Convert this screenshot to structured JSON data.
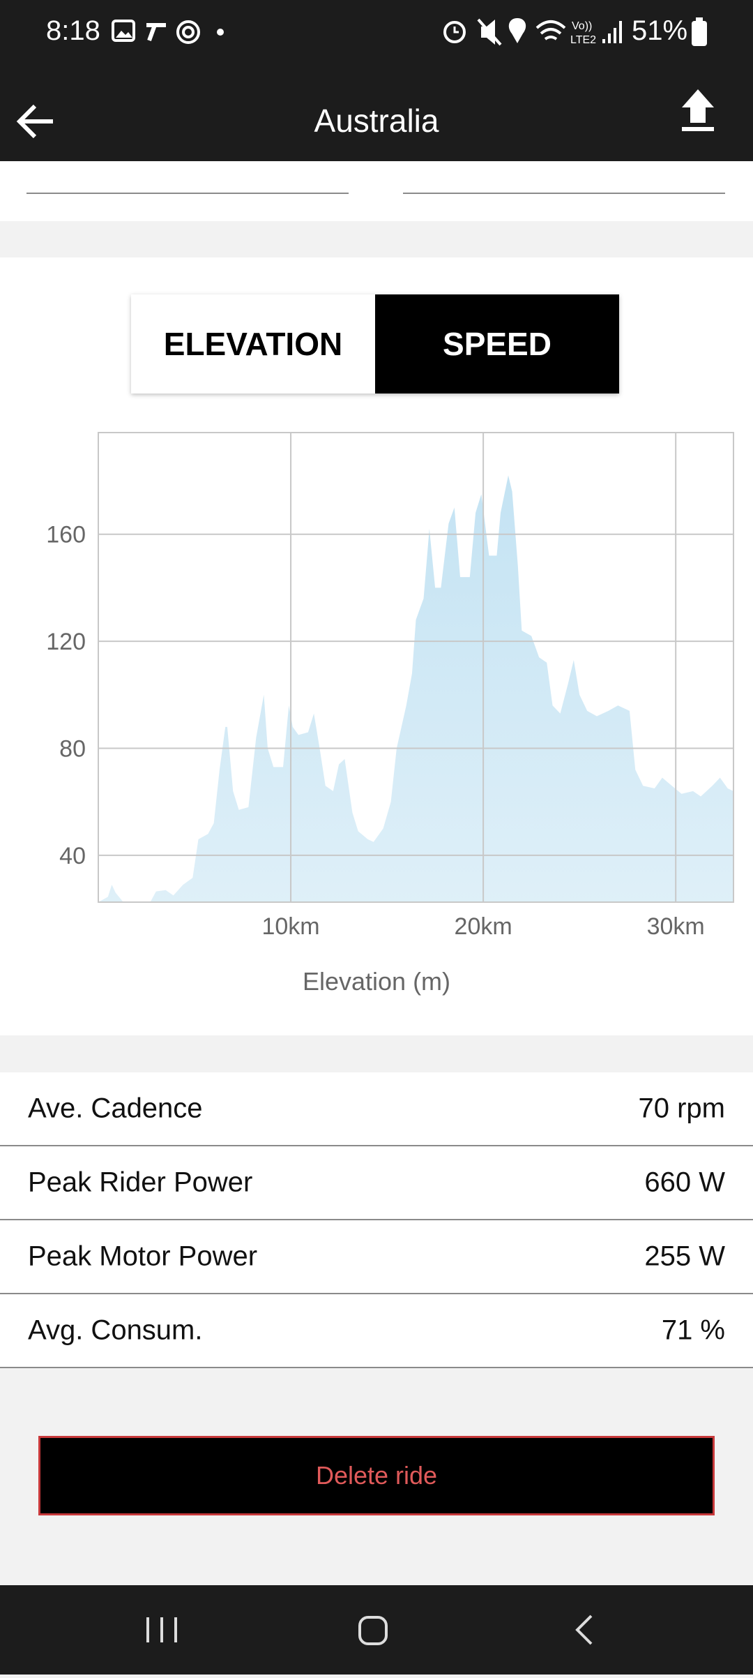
{
  "status_bar": {
    "time": "8:18",
    "network": [
      "Vo))",
      "LTE2"
    ],
    "battery": "51%"
  },
  "app_bar": {
    "title": "Australia"
  },
  "tabs": [
    "ELEVATION",
    "SPEED"
  ],
  "chart_data": {
    "type": "area",
    "color": "#c4e3f3",
    "grid": true,
    "x_label": "Elevation (m)",
    "x": [
      0,
      0.5,
      0.7,
      0.9,
      1.3,
      2.7,
      3.0,
      3.5,
      3.9,
      4.4,
      4.9,
      5.2,
      5.7,
      6.0,
      6.3,
      6.6,
      6.7,
      7.0,
      7.3,
      7.8,
      8.2,
      8.6,
      8.8,
      9.1,
      9.6,
      9.9,
      10.1,
      10.4,
      10.9,
      11.2,
      11.5,
      11.8,
      12.2,
      12.5,
      12.8,
      13.2,
      13.5,
      14.0,
      14.3,
      14.8,
      15.2,
      15.5,
      16.0,
      16.3,
      16.5,
      16.9,
      17.2,
      17.5,
      17.8,
      18.2,
      18.5,
      18.8,
      19.3,
      19.6,
      19.9,
      20.3,
      20.7,
      20.9,
      21.3,
      21.5,
      21.8,
      22.0,
      22.5,
      22.9,
      23.3,
      23.6,
      24.0,
      24.4,
      24.7,
      25.0,
      25.4,
      25.9,
      26.5,
      27.0,
      27.6,
      27.9,
      28.3,
      28.9,
      29.3,
      29.8,
      30.3,
      30.9,
      31.3,
      31.9,
      32.3,
      32.7,
      33.0
    ],
    "values": [
      22.5,
      24.5,
      29,
      26,
      22.5,
      22.5,
      26.5,
      27,
      25,
      29,
      31.6,
      46,
      48,
      52,
      72,
      88,
      88,
      64,
      57,
      58,
      84,
      100,
      80,
      73,
      73,
      96,
      88,
      85,
      86,
      93,
      80,
      66,
      64,
      74,
      76,
      56,
      49,
      46,
      45,
      50,
      60,
      80,
      96,
      108,
      128,
      136,
      162,
      140,
      140,
      164,
      170,
      144,
      144,
      168,
      175,
      152,
      152,
      168,
      182,
      176,
      148,
      124,
      122,
      114,
      112,
      96,
      93,
      104,
      113,
      100,
      94,
      92,
      94,
      96,
      94,
      72,
      66,
      65,
      69,
      66,
      63,
      64,
      62,
      66,
      69,
      65,
      64
    ],
    "xlim": [
      0,
      33
    ],
    "ylim": [
      22.5,
      198
    ],
    "xticks": [
      {
        "value": 10,
        "label": "10km"
      },
      {
        "value": 20,
        "label": "20km"
      },
      {
        "value": 30,
        "label": "30km"
      }
    ],
    "yticks": [
      40,
      80,
      120,
      160
    ]
  },
  "stats": [
    {
      "label": "Ave. Cadence",
      "value": "70 rpm"
    },
    {
      "label": "Peak Rider Power",
      "value": "660 W"
    },
    {
      "label": "Peak Motor Power",
      "value": "255 W"
    },
    {
      "label": "Avg. Consum.",
      "value": "71 %"
    }
  ],
  "delete_button": "Delete ride"
}
